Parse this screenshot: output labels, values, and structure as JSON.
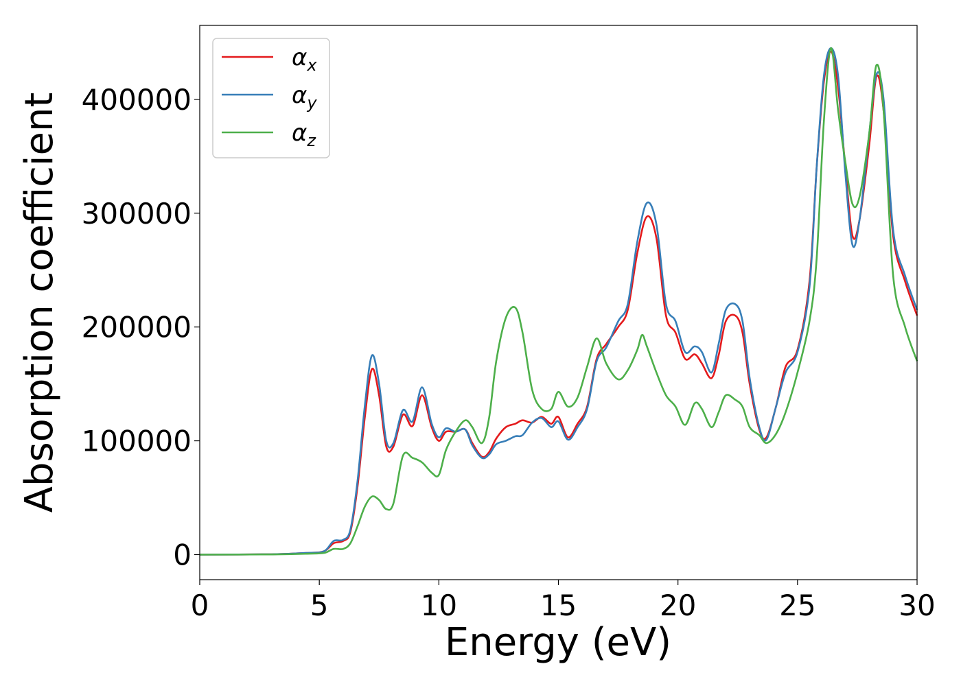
{
  "chart_data": {
    "type": "line",
    "title": "",
    "xlabel": "Energy (eV)",
    "ylabel": "Absorption coefficient",
    "xlim": [
      0,
      30
    ],
    "ylim": [
      -22000,
      465000
    ],
    "xticks": [
      0,
      5,
      10,
      15,
      20,
      25,
      30
    ],
    "xtick_labels": [
      "0",
      "5",
      "10",
      "15",
      "20",
      "25",
      "30"
    ],
    "yticks": [
      0,
      100000,
      200000,
      300000,
      400000
    ],
    "ytick_labels": [
      "0",
      "100000",
      "200000",
      "300000",
      "400000"
    ],
    "grid": false,
    "legend_position": "top-left",
    "series": [
      {
        "name": "αx",
        "symbol": "α",
        "subscript": "x",
        "color": "#e41a1c",
        "points": [
          [
            0,
            0
          ],
          [
            3,
            300
          ],
          [
            4.5,
            1500
          ],
          [
            5.2,
            3000
          ],
          [
            5.6,
            10000
          ],
          [
            6.0,
            12000
          ],
          [
            6.3,
            20000
          ],
          [
            6.6,
            60000
          ],
          [
            6.9,
            120000
          ],
          [
            7.2,
            163000
          ],
          [
            7.5,
            140000
          ],
          [
            7.8,
            95000
          ],
          [
            8.1,
            95000
          ],
          [
            8.5,
            123000
          ],
          [
            8.9,
            113000
          ],
          [
            9.3,
            140000
          ],
          [
            9.7,
            112000
          ],
          [
            10.0,
            100000
          ],
          [
            10.3,
            108000
          ],
          [
            10.7,
            108000
          ],
          [
            11.1,
            110000
          ],
          [
            11.4,
            98000
          ],
          [
            11.8,
            86000
          ],
          [
            12.1,
            90000
          ],
          [
            12.4,
            102000
          ],
          [
            12.8,
            112000
          ],
          [
            13.2,
            115000
          ],
          [
            13.5,
            118000
          ],
          [
            13.9,
            116000
          ],
          [
            14.3,
            121000
          ],
          [
            14.7,
            115000
          ],
          [
            15.0,
            121000
          ],
          [
            15.4,
            103000
          ],
          [
            15.8,
            115000
          ],
          [
            16.2,
            130000
          ],
          [
            16.6,
            172000
          ],
          [
            17.0,
            185000
          ],
          [
            17.5,
            200000
          ],
          [
            17.9,
            215000
          ],
          [
            18.3,
            265000
          ],
          [
            18.7,
            297000
          ],
          [
            19.1,
            278000
          ],
          [
            19.5,
            210000
          ],
          [
            19.9,
            195000
          ],
          [
            20.3,
            172000
          ],
          [
            20.7,
            176000
          ],
          [
            21.0,
            168000
          ],
          [
            21.4,
            155000
          ],
          [
            21.7,
            175000
          ],
          [
            22.0,
            205000
          ],
          [
            22.4,
            210000
          ],
          [
            22.7,
            195000
          ],
          [
            23.0,
            150000
          ],
          [
            23.4,
            110000
          ],
          [
            23.7,
            103000
          ],
          [
            24.1,
            130000
          ],
          [
            24.5,
            165000
          ],
          [
            25.0,
            180000
          ],
          [
            25.5,
            240000
          ],
          [
            25.8,
            340000
          ],
          [
            26.1,
            415000
          ],
          [
            26.4,
            442000
          ],
          [
            26.7,
            410000
          ],
          [
            27.0,
            340000
          ],
          [
            27.3,
            280000
          ],
          [
            27.6,
            295000
          ],
          [
            28.0,
            360000
          ],
          [
            28.3,
            420000
          ],
          [
            28.6,
            390000
          ],
          [
            29.0,
            280000
          ],
          [
            29.5,
            240000
          ],
          [
            30,
            210000
          ]
        ]
      },
      {
        "name": "αy",
        "symbol": "α",
        "subscript": "y",
        "color": "#377eb8",
        "points": [
          [
            0,
            0
          ],
          [
            3,
            300
          ],
          [
            4.5,
            1500
          ],
          [
            5.2,
            3000
          ],
          [
            5.6,
            12000
          ],
          [
            6.0,
            13000
          ],
          [
            6.3,
            22000
          ],
          [
            6.6,
            65000
          ],
          [
            6.9,
            130000
          ],
          [
            7.2,
            175000
          ],
          [
            7.5,
            150000
          ],
          [
            7.8,
            100000
          ],
          [
            8.1,
            98000
          ],
          [
            8.5,
            127000
          ],
          [
            8.9,
            117000
          ],
          [
            9.3,
            147000
          ],
          [
            9.7,
            115000
          ],
          [
            10.0,
            103000
          ],
          [
            10.3,
            111000
          ],
          [
            10.7,
            108000
          ],
          [
            11.1,
            110000
          ],
          [
            11.4,
            96000
          ],
          [
            11.8,
            85000
          ],
          [
            12.1,
            88000
          ],
          [
            12.4,
            97000
          ],
          [
            12.8,
            100000
          ],
          [
            13.2,
            104000
          ],
          [
            13.5,
            105000
          ],
          [
            13.9,
            116000
          ],
          [
            14.3,
            120000
          ],
          [
            14.7,
            112000
          ],
          [
            15.0,
            117000
          ],
          [
            15.4,
            101000
          ],
          [
            15.8,
            112000
          ],
          [
            16.2,
            128000
          ],
          [
            16.6,
            170000
          ],
          [
            17.0,
            182000
          ],
          [
            17.5,
            205000
          ],
          [
            17.9,
            220000
          ],
          [
            18.3,
            275000
          ],
          [
            18.7,
            309000
          ],
          [
            19.1,
            290000
          ],
          [
            19.5,
            220000
          ],
          [
            19.9,
            205000
          ],
          [
            20.3,
            178000
          ],
          [
            20.7,
            183000
          ],
          [
            21.0,
            178000
          ],
          [
            21.4,
            160000
          ],
          [
            21.7,
            185000
          ],
          [
            22.0,
            215000
          ],
          [
            22.4,
            220000
          ],
          [
            22.7,
            205000
          ],
          [
            23.0,
            155000
          ],
          [
            23.4,
            112000
          ],
          [
            23.7,
            101000
          ],
          [
            24.1,
            130000
          ],
          [
            24.5,
            160000
          ],
          [
            25.0,
            178000
          ],
          [
            25.5,
            235000
          ],
          [
            25.8,
            340000
          ],
          [
            26.1,
            420000
          ],
          [
            26.4,
            445000
          ],
          [
            26.7,
            420000
          ],
          [
            27.0,
            335000
          ],
          [
            27.3,
            272000
          ],
          [
            27.6,
            295000
          ],
          [
            28.0,
            370000
          ],
          [
            28.3,
            422000
          ],
          [
            28.6,
            400000
          ],
          [
            29.0,
            285000
          ],
          [
            29.5,
            245000
          ],
          [
            30,
            215000
          ]
        ]
      },
      {
        "name": "αz",
        "symbol": "α",
        "subscript": "z",
        "color": "#4daf4a",
        "points": [
          [
            0,
            0
          ],
          [
            3,
            200
          ],
          [
            4.5,
            800
          ],
          [
            5.2,
            1500
          ],
          [
            5.6,
            5000
          ],
          [
            6.0,
            5000
          ],
          [
            6.3,
            10000
          ],
          [
            6.6,
            25000
          ],
          [
            6.9,
            42000
          ],
          [
            7.2,
            51000
          ],
          [
            7.5,
            48000
          ],
          [
            7.8,
            40000
          ],
          [
            8.1,
            45000
          ],
          [
            8.5,
            87000
          ],
          [
            8.9,
            85000
          ],
          [
            9.3,
            81000
          ],
          [
            9.7,
            72000
          ],
          [
            10.0,
            70000
          ],
          [
            10.3,
            92000
          ],
          [
            10.7,
            108000
          ],
          [
            11.1,
            118000
          ],
          [
            11.4,
            112000
          ],
          [
            11.8,
            98000
          ],
          [
            12.1,
            120000
          ],
          [
            12.4,
            170000
          ],
          [
            12.8,
            208000
          ],
          [
            13.2,
            217000
          ],
          [
            13.5,
            195000
          ],
          [
            13.9,
            145000
          ],
          [
            14.3,
            128000
          ],
          [
            14.7,
            128000
          ],
          [
            15.0,
            143000
          ],
          [
            15.4,
            130000
          ],
          [
            15.8,
            138000
          ],
          [
            16.2,
            165000
          ],
          [
            16.6,
            190000
          ],
          [
            17.0,
            168000
          ],
          [
            17.5,
            154000
          ],
          [
            17.9,
            162000
          ],
          [
            18.3,
            180000
          ],
          [
            18.5,
            193000
          ],
          [
            18.7,
            183000
          ],
          [
            19.1,
            160000
          ],
          [
            19.5,
            140000
          ],
          [
            19.9,
            130000
          ],
          [
            20.3,
            114000
          ],
          [
            20.7,
            133000
          ],
          [
            21.0,
            128000
          ],
          [
            21.4,
            112000
          ],
          [
            21.7,
            125000
          ],
          [
            22.0,
            140000
          ],
          [
            22.4,
            136000
          ],
          [
            22.7,
            130000
          ],
          [
            23.0,
            112000
          ],
          [
            23.4,
            105000
          ],
          [
            23.7,
            98000
          ],
          [
            24.1,
            106000
          ],
          [
            24.5,
            125000
          ],
          [
            25.0,
            160000
          ],
          [
            25.5,
            205000
          ],
          [
            25.8,
            260000
          ],
          [
            26.1,
            380000
          ],
          [
            26.4,
            445000
          ],
          [
            26.7,
            390000
          ],
          [
            27.0,
            345000
          ],
          [
            27.3,
            308000
          ],
          [
            27.6,
            315000
          ],
          [
            28.0,
            370000
          ],
          [
            28.3,
            430000
          ],
          [
            28.6,
            390000
          ],
          [
            29.0,
            245000
          ],
          [
            29.5,
            200000
          ],
          [
            30,
            170000
          ]
        ]
      }
    ]
  }
}
